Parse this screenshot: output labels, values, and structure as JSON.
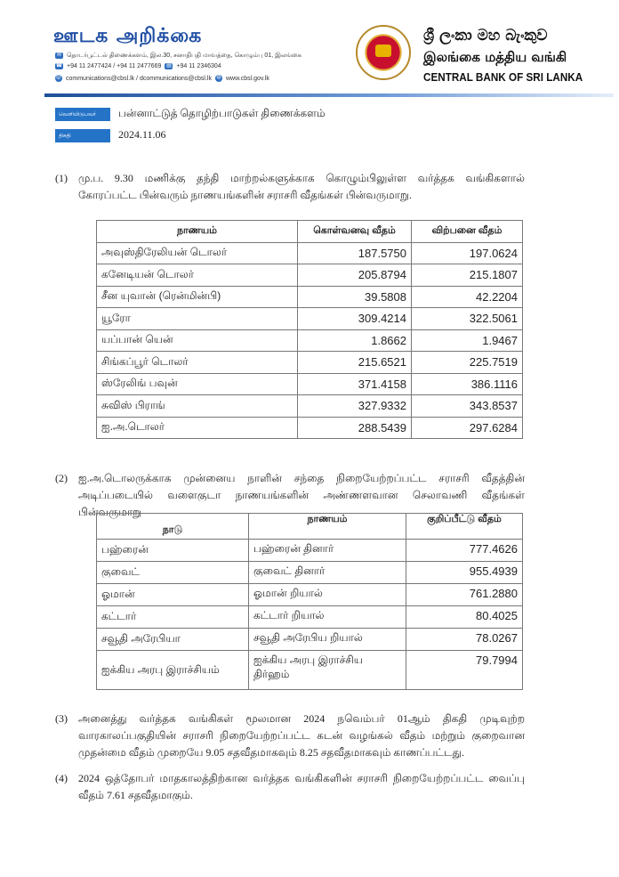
{
  "header": {
    "title": "ஊடக அறிக்கை",
    "address": "தொடர்பூட்டல் திணைக்களம், இல.30, சனாதிபதி மாவத்தை, கொழும்பு 01, இலங்கை",
    "phone": "+94 11 2477424 / +94 11 2477669",
    "fax": "+94 11  2346304",
    "email": "communications@cbsl.lk / dcommunications@cbsl.lk",
    "website": "www.cbsl.gov.lk",
    "bank_name_sinhala": "ශ්‍රී ලංකා මහ බැංකුව",
    "bank_name_tamil": "இலங்கை மத்திய வங்கி",
    "bank_name_english": "CENTRAL BANK OF SRI LANKA",
    "accent_color": "#1f4ea3"
  },
  "meta": {
    "issuer_label": "வெளியிடுபவர்",
    "issuer_value": "பன்னாட்டுத் தொழிற்பாடுகள் திணைக்களம்",
    "date_label": "திகதி",
    "date_value": "2024.11.06"
  },
  "section1": {
    "number": "(1)",
    "text": "மு.ப. 9.30 மணிக்கு தந்தி மாற்றல்களுக்காக கொழும்பிலுள்ள வர்த்தக வங்கிகளால் கோரப்பட்ட பின்வரும் நாணயங்களின் சராசரி வீதங்கள் பின்வருமாறு.",
    "headers": [
      "நாணயம்",
      "கொள்வனவு வீதம்",
      "விற்பனை வீதம்"
    ],
    "rows": [
      [
        "அவுஸ்திரேலியன் டொலர்",
        "187.5750",
        "197.0624"
      ],
      [
        "கனேடியன் டொலர்",
        "205.8794",
        "215.1807"
      ],
      [
        "சீன யுவான் (ரென்மின்பி)",
        "39.5808",
        "42.2204"
      ],
      [
        "யூரோ",
        "309.4214",
        "322.5061"
      ],
      [
        "யப்பான் யென்",
        "1.8662",
        "1.9467"
      ],
      [
        "சிங்கப்பூர் டொலர்",
        "215.6521",
        "225.7519"
      ],
      [
        "ஸ்ரேலிங் பவுன்",
        "371.4158",
        "386.1116"
      ],
      [
        "சுவிஸ் பிராங்",
        "327.9332",
        "343.8537"
      ],
      [
        "ஐ.அ.டொலர்",
        "288.5439",
        "297.6284"
      ]
    ]
  },
  "section2": {
    "number": "(2)",
    "text": "ஐ.அ.டொலருக்காக முன்னைய நாளின் சந்தை நிறையேற்றப்பட்ட சராசரி வீதத்தின் அடிப்படையில் வளைகுடா நாணயங்களின் அண்ணளவான செலாவணி வீதங்கள் பின்வருமாறு",
    "headers": [
      "நாடு",
      "நாணயம்",
      "குறிப்பீட்டு வீதம்"
    ],
    "rows": [
      [
        "பஹ்ரைன்",
        "பஹ்ரைன் தினார்",
        "777.4626"
      ],
      [
        "குவைட்",
        "குவைட் தினார்",
        "955.4939"
      ],
      [
        "ஓமான்",
        "ஓமான் றியால்",
        "761.2880"
      ],
      [
        "கட்டார்",
        "கட்டார் றியால்",
        "80.4025"
      ],
      [
        "சவூதி அரேபியா",
        "சவூதி அரேபிய றியால்",
        "78.0267"
      ],
      [
        "ஐக்கிய அரபு இராச்சியம்",
        "ஐக்கிய அரபு இராச்சிய திர்ஹம்",
        "79.7994"
      ]
    ]
  },
  "section3": {
    "number": "(3)",
    "text": "அனைத்து வர்த்தக வங்கிகள் மூலமான 2024 நவெம்பர் 01ஆம் திகதி முடிவுற்ற வாரகாலப்பகுதியின் சராசரி நிறையேற்றப்பட்ட கடன் வழங்கல் வீதம் மற்றும் குறைவான முதன்மை வீதம் முறையே 9.05 சதவீதமாகவும் 8.25 சதவீதமாகவும் காணப்பட்டது."
  },
  "section4": {
    "number": "(4)",
    "text": "2024 ஒத்தோபர் மாதகாலத்திற்கான வர்த்தக வங்கிகளின் சராசரி நிறையேற்றப்பட்ட வைப்பு வீதம் 7.61 சதவீதமாகும்."
  }
}
